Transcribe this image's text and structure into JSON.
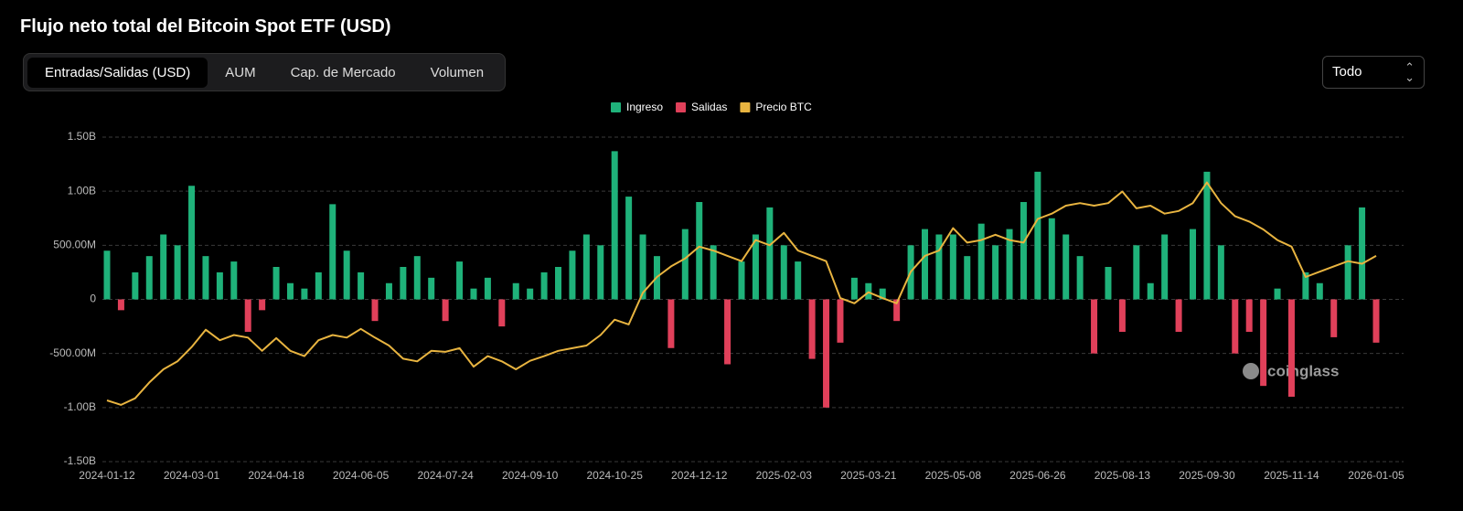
{
  "title": "Flujo neto total del Bitcoin Spot ETF (USD)",
  "tabs": [
    "Entradas/Salidas (USD)",
    "AUM",
    "Cap. de Mercado",
    "Volumen"
  ],
  "range_select": "Todo",
  "watermark": "coinglass",
  "chart_data": {
    "type": "bar",
    "categories": [
      "2024-01-12",
      null,
      null,
      null,
      null,
      null,
      "2024-03-01",
      null,
      null,
      null,
      null,
      null,
      "2024-04-18",
      null,
      null,
      null,
      null,
      null,
      "2024-06-05",
      null,
      null,
      null,
      null,
      null,
      "2024-07-24",
      null,
      null,
      null,
      null,
      null,
      "2024-09-10",
      null,
      null,
      null,
      null,
      null,
      "2024-10-25",
      null,
      null,
      null,
      null,
      null,
      "2024-12-12",
      null,
      null,
      null,
      null,
      null,
      "2025-02-03",
      null,
      null,
      null,
      null,
      null,
      "2025-03-21",
      null,
      null,
      null,
      null,
      null,
      "2025-05-08",
      null,
      null,
      null,
      null,
      null,
      "2025-06-26",
      null,
      null,
      null,
      null,
      null,
      "2025-08-13",
      null,
      null,
      null,
      null,
      null,
      "2025-09-30",
      null,
      null,
      null,
      null,
      null,
      "2025-11-14",
      null,
      null,
      null,
      null,
      null,
      "2026-01-05"
    ],
    "series": [
      {
        "name": "Ingreso",
        "color": "#1fb27a",
        "values": [
          450000000.0,
          null,
          250000000.0,
          400000000.0,
          600000000.0,
          500000000.0,
          1050000000.0,
          400000000.0,
          250000000.0,
          350000000.0,
          null,
          null,
          300000000.0,
          150000000.0,
          100000000.0,
          250000000.0,
          880000000.0,
          450000000.0,
          250000000.0,
          null,
          150000000.0,
          300000000.0,
          400000000.0,
          200000000.0,
          null,
          350000000.0,
          100000000.0,
          200000000.0,
          null,
          150000000.0,
          100000000.0,
          250000000.0,
          300000000.0,
          450000000.0,
          600000000.0,
          500000000.0,
          1370000000.0,
          950000000.0,
          600000000.0,
          400000000.0,
          null,
          650000000.0,
          900000000.0,
          500000000.0,
          null,
          350000000.0,
          600000000.0,
          850000000.0,
          500000000.0,
          350000000.0,
          null,
          null,
          null,
          200000000.0,
          150000000.0,
          100000000.0,
          null,
          500000000.0,
          650000000.0,
          600000000.0,
          600000000.0,
          400000000.0,
          700000000.0,
          500000000.0,
          650000000.0,
          900000000.0,
          1180000000.0,
          750000000.0,
          600000000.0,
          400000000.0,
          null,
          300000000.0,
          null,
          500000000.0,
          150000000.0,
          600000000.0,
          null,
          650000000.0,
          1180000000.0,
          500000000.0,
          null,
          null,
          null,
          100000000.0,
          null,
          250000000.0,
          150000000.0,
          null,
          500000000.0,
          850000000.0,
          null
        ]
      },
      {
        "name": "Salidas",
        "color": "#e0405a",
        "values": [
          null,
          -100000000.0,
          null,
          null,
          null,
          null,
          null,
          null,
          null,
          null,
          -300000000.0,
          -100000000.0,
          null,
          null,
          null,
          null,
          null,
          null,
          null,
          -200000000.0,
          null,
          null,
          null,
          null,
          -200000000.0,
          null,
          null,
          null,
          -250000000.0,
          null,
          null,
          null,
          null,
          null,
          null,
          null,
          null,
          null,
          null,
          null,
          -450000000.0,
          null,
          null,
          null,
          -600000000.0,
          null,
          null,
          null,
          null,
          null,
          -550000000.0,
          -1000000000.0,
          -400000000.0,
          null,
          null,
          null,
          -200000000.0,
          null,
          null,
          null,
          null,
          null,
          null,
          null,
          null,
          null,
          null,
          null,
          null,
          null,
          -500000000.0,
          null,
          -300000000.0,
          null,
          null,
          null,
          -300000000.0,
          null,
          null,
          null,
          -500000000.0,
          -300000000.0,
          -800000000.0,
          null,
          -900000000.0,
          null,
          null,
          -350000000.0,
          null,
          null,
          -400000000.0
        ]
      },
      {
        "name": "Precio BTC",
        "color": "#e8b440",
        "type": "line",
        "axis": "y2",
        "values": [
          43200,
          41500,
          44000,
          50000,
          55000,
          58000,
          63400,
          70000,
          66000,
          68000,
          67000,
          62000,
          66800,
          62000,
          60000,
          66000,
          68000,
          67000,
          70300,
          67000,
          64000,
          59000,
          58000,
          62000,
          61600,
          63000,
          56000,
          60000,
          58000,
          55000,
          58200,
          60000,
          62000,
          63000,
          64000,
          68000,
          73800,
          72000,
          84000,
          90000,
          94000,
          97000,
          101500,
          100000,
          98000,
          96000,
          104000,
          102000,
          106700,
          100000,
          98000,
          96000,
          82000,
          80000,
          84200,
          82000,
          80000,
          92000,
          98000,
          100000,
          108500,
          103000,
          104000,
          106000,
          104000,
          103000,
          112000,
          114000,
          117000,
          118000,
          117000,
          118000,
          122400,
          116000,
          117000,
          114000,
          115000,
          118000,
          125800,
          118000,
          113000,
          111000,
          108000,
          104000,
          101500,
          90000,
          92000,
          94000,
          96000,
          95000,
          98000
        ]
      }
    ],
    "ylim": [
      -1500000000.0,
      1500000000.0
    ],
    "yticks": [
      {
        "value": -1500000000.0,
        "label": "-1.50B"
      },
      {
        "value": -1000000000.0,
        "label": "-1.00B"
      },
      {
        "value": -500000000.0,
        "label": "-500.00M"
      },
      0,
      {
        "value": 500000000.0,
        "label": "500.00M"
      },
      {
        "value": 1000000000.0,
        "label": "1.00B"
      },
      {
        "value": 1500000000.0,
        "label": "1.50B"
      }
    ],
    "y2lim": [
      20000,
      143000
    ],
    "grid": true,
    "legend": "top"
  }
}
